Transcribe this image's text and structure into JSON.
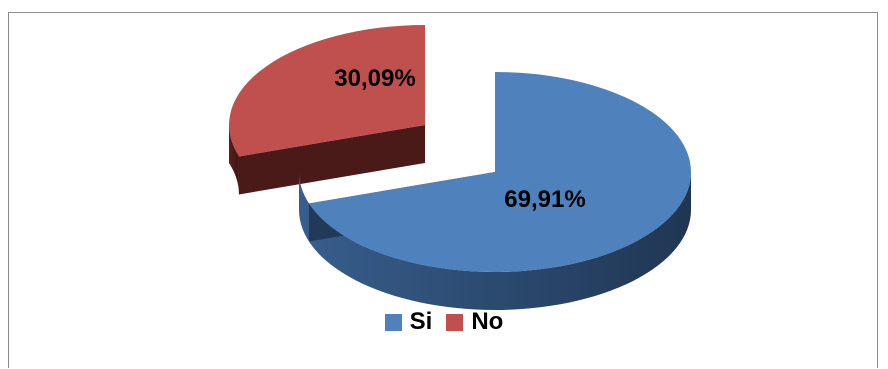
{
  "chart_data": {
    "type": "pie",
    "title": "",
    "categories": [
      "Si",
      "No"
    ],
    "values": [
      69.91,
      30.09
    ],
    "value_labels": [
      "69,91%",
      "30,09%"
    ],
    "colors": [
      "#4f81bd",
      "#c0504d"
    ],
    "exploded": [
      "No"
    ],
    "style": "3d",
    "legend_position": "bottom"
  },
  "legend": {
    "items": [
      {
        "label": "Si",
        "color": "#4f81bd"
      },
      {
        "label": "No",
        "color": "#c0504d"
      }
    ]
  }
}
